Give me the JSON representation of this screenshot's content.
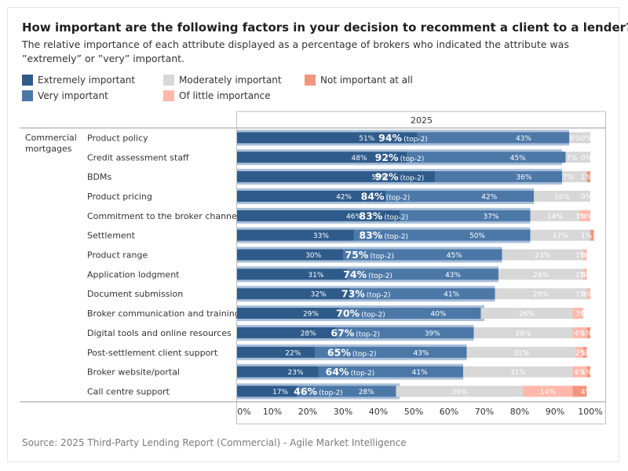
{
  "title": "How important are the following factors in your decision to recomment a client to a lender?",
  "subtitle": "The relative importance of each attribute displayed as a percentage of brokers who indicated the attribute was ”extremely” or ”very” important.",
  "source": "Source: 2025 Third-Party Lending Report (Commercial) - Agile Market Intelligence",
  "colors": {
    "extremely": "#2e5b8a",
    "very": "#4c78a8",
    "moderately": "#d7d7d7",
    "little": "#ffb8aa",
    "not": "#f2957f",
    "top2_bg": "#a9bfd9"
  },
  "legend": [
    {
      "label": "Extremely important",
      "color": "#2e5b8a"
    },
    {
      "label": "Very important",
      "color": "#4c78a8"
    },
    {
      "label": "Moderately important",
      "color": "#d7d7d7"
    },
    {
      "label": "Of little importance",
      "color": "#ffb8aa"
    },
    {
      "label": "Not important at all",
      "color": "#f2957f"
    }
  ],
  "chart_data": {
    "type": "bar",
    "orientation": "horizontal",
    "stacked": true,
    "column_header": "2025",
    "row_group": "Commercial mortgages",
    "top2_suffix": "(top-2)",
    "xlim": [
      0,
      100
    ],
    "x_ticks": [
      "0%",
      "10%",
      "20%",
      "30%",
      "40%",
      "50%",
      "60%",
      "70%",
      "80%",
      "90%",
      "100%"
    ],
    "categories": [
      "Product policy",
      "Credit assessment staff",
      "BDMs",
      "Product pricing",
      "Commitment to the broker channel",
      "Settlement",
      "Product range",
      "Application lodgment",
      "Document submission",
      "Broker communication and training",
      "Digital tools and online resources",
      "Post-settlement client support",
      "Broker website/portal",
      "Call centre support"
    ],
    "top2": [
      94,
      92,
      92,
      84,
      83,
      83,
      75,
      74,
      73,
      70,
      67,
      65,
      64,
      46
    ],
    "series": [
      {
        "name": "Extremely important",
        "values": [
          51,
          48,
          56,
          42,
          46,
          33,
          30,
          31,
          32,
          29,
          28,
          22,
          23,
          17
        ]
      },
      {
        "name": "Very important",
        "values": [
          43,
          45,
          36,
          42,
          37,
          50,
          45,
          43,
          41,
          40,
          39,
          43,
          41,
          28
        ]
      },
      {
        "name": "Moderately important",
        "values": [
          6,
          7,
          7,
          16,
          14,
          17,
          23,
          24,
          26,
          26,
          28,
          31,
          31,
          36
        ]
      },
      {
        "name": "Of little importance",
        "values": [
          0,
          0,
          0,
          0,
          3,
          0,
          1,
          1,
          1,
          3,
          4,
          2,
          4,
          14
        ]
      },
      {
        "name": "Not important at all",
        "values": [
          0,
          0,
          1,
          0,
          0,
          1,
          0,
          0,
          0,
          0,
          1,
          1,
          1,
          4
        ]
      }
    ],
    "segment_labels": [
      [
        "51%",
        "43%",
        "6%",
        "",
        "0%"
      ],
      [
        "48%",
        "45%",
        "7%",
        "",
        "0%"
      ],
      [
        "56%",
        "36%",
        "7%",
        "",
        "1%"
      ],
      [
        "42%",
        "42%",
        "16%",
        "",
        "0%"
      ],
      [
        "46%",
        "37%",
        "14%",
        "3%",
        "0%"
      ],
      [
        "33%",
        "50%",
        "17%",
        "",
        "1%"
      ],
      [
        "30%",
        "45%",
        "23%",
        "1%",
        "0%"
      ],
      [
        "31%",
        "43%",
        "24%",
        "1%",
        "0%"
      ],
      [
        "32%",
        "41%",
        "26%",
        "1%",
        "0%"
      ],
      [
        "29%",
        "40%",
        "26%",
        "3%",
        "0%"
      ],
      [
        "28%",
        "39%",
        "28%",
        "4%",
        "1%"
      ],
      [
        "22%",
        "43%",
        "31%",
        "2%",
        "1%"
      ],
      [
        "23%",
        "41%",
        "31%",
        "4%",
        "1%"
      ],
      [
        "17%",
        "28%",
        "36%",
        "14%",
        "4%"
      ]
    ]
  }
}
